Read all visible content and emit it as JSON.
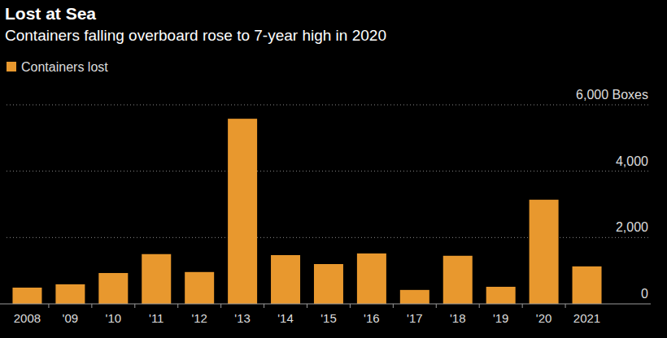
{
  "chart_data": {
    "type": "bar",
    "title": "Lost at Sea",
    "subtitle": "Containers falling overboard rose to 7-year high in 2020",
    "categories": [
      "2008",
      "'09",
      "'10",
      "'11",
      "'12",
      "'13",
      "'14",
      "'15",
      "'16",
      "'17",
      "'18",
      "'19",
      "'20",
      "2021"
    ],
    "series": [
      {
        "name": "Containers lost",
        "color": "#e8982e",
        "values": [
          490,
          590,
          930,
          1500,
          960,
          5580,
          1470,
          1200,
          1520,
          420,
          1450,
          515,
          3140,
          1130
        ]
      }
    ],
    "ylim": [
      0,
      6000
    ],
    "yticks": [
      0,
      {
        "value": 2000,
        "label": "2,000"
      },
      {
        "value": 4000,
        "label": "4,000"
      },
      {
        "value": 6000,
        "label": "6,000 Boxes"
      }
    ],
    "grid": true,
    "legend": "top-left"
  }
}
